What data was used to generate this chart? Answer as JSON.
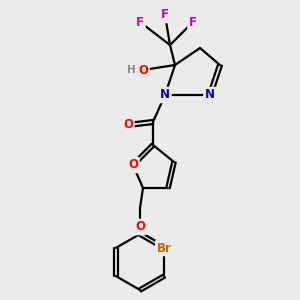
{
  "background_color": "#ebebeb",
  "atom_colors": {
    "C": "#000000",
    "N": "#0000cc",
    "O": "#ff0000",
    "F": "#cc00cc",
    "Br": "#cc6600",
    "H": "#888888"
  },
  "figsize": [
    3.0,
    3.0
  ],
  "dpi": 100
}
